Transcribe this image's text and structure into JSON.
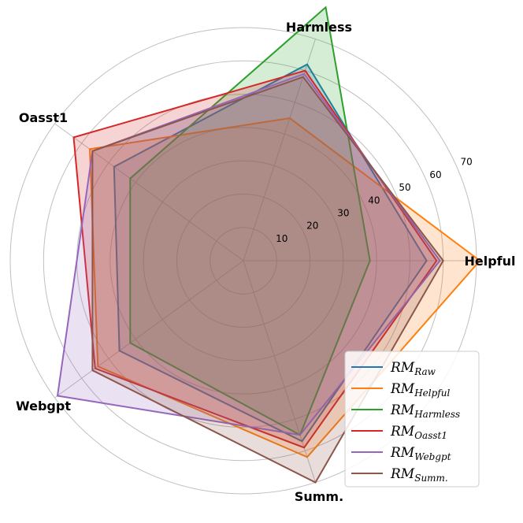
{
  "chart_data": {
    "type": "radar",
    "axes": [
      "Helpful",
      "Harmless",
      "Oasst1",
      "Webgpt",
      "Summ."
    ],
    "r_ticks": [
      10,
      20,
      30,
      40,
      50,
      60,
      70
    ],
    "r_range": [
      0,
      70
    ],
    "grid": true,
    "legend_placement": "bottom-right",
    "series": [
      {
        "name": "RM",
        "subscript": "Raw",
        "color": "#1f77b4",
        "values": [
          55,
          62,
          48,
          46,
          57
        ]
      },
      {
        "name": "RM",
        "subscript": "Helpful",
        "color": "#ff7f0e",
        "values": [
          71,
          45,
          57,
          54,
          62
        ]
      },
      {
        "name": "RM",
        "subscript": "Harmless",
        "color": "#2ca02c",
        "values": [
          38,
          80,
          42,
          42,
          55
        ]
      },
      {
        "name": "RM",
        "subscript": "Oasst1",
        "color": "#d62728",
        "values": [
          58,
          60,
          63,
          55,
          59
        ]
      },
      {
        "name": "RM",
        "subscript": "Webgpt",
        "color": "#9467bd",
        "values": [
          59,
          59,
          56,
          69,
          55
        ]
      },
      {
        "name": "RM",
        "subscript": "Summ.",
        "color": "#8c564b",
        "values": [
          60,
          58,
          56,
          56,
          70
        ]
      }
    ]
  }
}
